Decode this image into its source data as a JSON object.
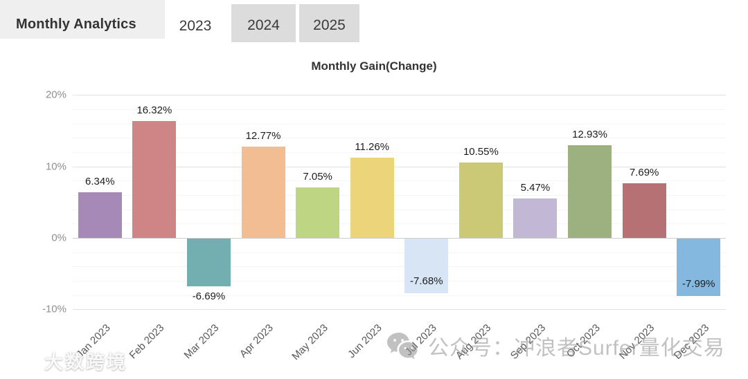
{
  "header": {
    "title": "Monthly Analytics",
    "tabs": [
      {
        "label": "2023",
        "active": true
      },
      {
        "label": "2024",
        "active": false
      },
      {
        "label": "2025",
        "active": false
      }
    ]
  },
  "chart_data": {
    "type": "bar",
    "title": "Monthly Gain(Change)",
    "categories": [
      "Jan 2023",
      "Feb 2023",
      "Mar 2023",
      "Apr 2023",
      "May 2023",
      "Jun 2023",
      "Jul 2023",
      "Aug 2023",
      "Sep 2023",
      "Oct 2023",
      "Nov 2023",
      "Dec 2023"
    ],
    "values": [
      6.34,
      16.32,
      -6.69,
      12.77,
      7.05,
      11.26,
      -7.68,
      10.55,
      5.47,
      12.93,
      7.69,
      -7.99
    ],
    "value_labels": [
      "6.34%",
      "16.32%",
      "-6.69%",
      "12.77%",
      "7.05%",
      "11.26%",
      "-7.68%",
      "10.55%",
      "5.47%",
      "12.93%",
      "7.69%",
      "-7.99%"
    ],
    "bar_colors": [
      "#a689b6",
      "#cf8585",
      "#73aeb1",
      "#f2bd93",
      "#bed583",
      "#ecd47b",
      "#d7e5f4",
      "#cbc976",
      "#c2b8d6",
      "#9db080",
      "#b57173",
      "#85b8df"
    ],
    "xlabel": "",
    "ylabel": "",
    "ylim": [
      -10,
      20
    ],
    "y_axis_ticks": [
      {
        "label": "20%",
        "value": 20
      },
      {
        "label": "10%",
        "value": 10
      },
      {
        "label": "0%",
        "value": 0
      },
      {
        "label": "-10%",
        "value": -10
      }
    ],
    "minor_grid_step": 2,
    "grid": true,
    "legend": false
  },
  "watermarks": {
    "wechat_text": "公众号：冲浪者Surfer量化交易",
    "corner_text": "大数跨境"
  },
  "colors": {
    "header_bg": "#efefef",
    "tab_inactive_bg": "#dcdcdc",
    "tab_active_bg": "#ffffff",
    "grid_major": "#e2e2e2",
    "grid_minor": "#f4f4f4",
    "zero_axis": "#cccccc"
  }
}
